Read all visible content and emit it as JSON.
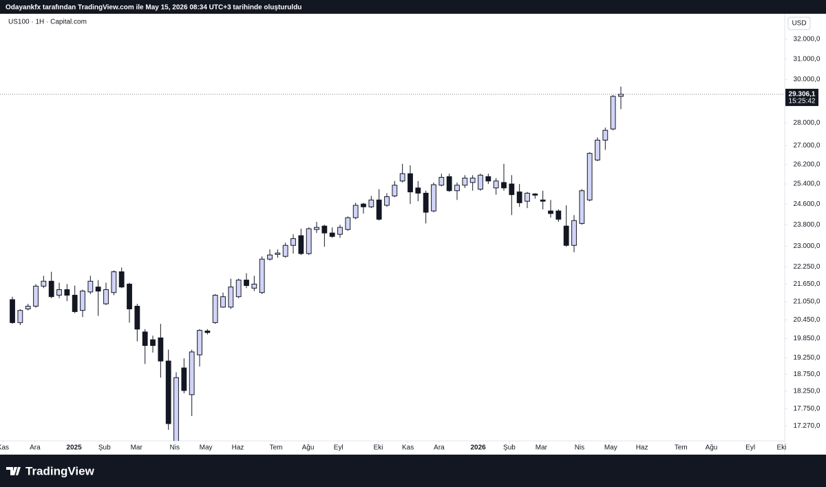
{
  "header": {
    "caption": "Odayankfx tarafından TradingView.com ile May 15, 2026 08:34 UTC+3 tarihinde oluşturuldu"
  },
  "footer": {
    "brand": "TradingView"
  },
  "chart_data": {
    "type": "candlestick",
    "title": "US100 · 1H · Capital.com",
    "currency": "USD",
    "log_scale": true,
    "grid": false,
    "up_color": "#d1d4f7",
    "down_color": "#131722",
    "categories": [
      null,
      null,
      null,
      null,
      null,
      null,
      null,
      null,
      null,
      null,
      null,
      null,
      null,
      null,
      null,
      null,
      null,
      null,
      null,
      null,
      null,
      null,
      null,
      null,
      null,
      null,
      null,
      null,
      null,
      null,
      null,
      null,
      null,
      null,
      null,
      null,
      null,
      null,
      null,
      null,
      null,
      null,
      null,
      null,
      null,
      null,
      null,
      null,
      null,
      null,
      null,
      null,
      null,
      null,
      null,
      null,
      null,
      null,
      null,
      null,
      null,
      null,
      null,
      null,
      null,
      null,
      null,
      null,
      null,
      null,
      null,
      null,
      null,
      null,
      null,
      null,
      null,
      null,
      null
    ],
    "open": [
      21120,
      20360,
      20810,
      20900,
      21580,
      21750,
      21270,
      21460,
      21270,
      20760,
      21380,
      21550,
      20980,
      21360,
      22080,
      21650,
      20900,
      20060,
      19810,
      19870,
      19150,
      16850,
      18940,
      18150,
      19340,
      20090,
      20360,
      20870,
      20870,
      21220,
      21790,
      21510,
      21360,
      22530,
      22700,
      22630,
      23030,
      23390,
      22730,
      23620,
      23750,
      23490,
      23440,
      23620,
      24070,
      24600,
      24490,
      24760,
      24550,
      24920,
      25520,
      25820,
      25240,
      25030,
      24330,
      25350,
      25700,
      25130,
      25350,
      25460,
      25190,
      25700,
      25240,
      25460,
      25400,
      25080,
      24710,
      25000,
      24760,
      24330,
      24330,
      23750,
      23030,
      23850,
      24760,
      26390,
      27240,
      27730,
      29210
    ],
    "high": [
      21220,
      20800,
      20980,
      21650,
      21940,
      22080,
      21700,
      21650,
      21600,
      21460,
      21940,
      21790,
      21700,
      22130,
      22230,
      21700,
      20980,
      20150,
      19940,
      20320,
      19500,
      18810,
      19230,
      19500,
      20150,
      20150,
      21310,
      21360,
      21840,
      21840,
      22030,
      21940,
      22630,
      22880,
      22880,
      23130,
      23440,
      23650,
      23700,
      23910,
      23800,
      23700,
      23800,
      24120,
      24650,
      24650,
      24920,
      25190,
      25030,
      25520,
      26230,
      26170,
      25520,
      25130,
      25460,
      25820,
      25820,
      25460,
      25760,
      25760,
      25820,
      25820,
      25640,
      26230,
      25760,
      25400,
      25080,
      25030,
      25130,
      24760,
      24390,
      24550,
      24170,
      25190,
      26720,
      27360,
      27790,
      29270,
      29670
    ],
    "low": [
      20320,
      20280,
      20760,
      20850,
      21510,
      21170,
      21170,
      21070,
      20670,
      20540,
      21310,
      20580,
      20940,
      21270,
      21510,
      20360,
      19760,
      19060,
      19410,
      18650,
      17160,
      16760,
      18190,
      17540,
      18980,
      19980,
      20320,
      20850,
      20810,
      21170,
      21510,
      21410,
      21310,
      22480,
      22580,
      22580,
      22730,
      22680,
      22680,
      23490,
      22980,
      23310,
      23310,
      23570,
      24010,
      24230,
      24440,
      23960,
      24490,
      24870,
      25460,
      24600,
      24710,
      23850,
      24280,
      25300,
      25080,
      24760,
      25240,
      25130,
      25130,
      25400,
      24970,
      25130,
      24170,
      24490,
      24440,
      24810,
      24390,
      24070,
      23910,
      22980,
      22780,
      23800,
      24710,
      26340,
      26820,
      27670,
      28620
    ],
    "close": [
      20360,
      20760,
      20900,
      21580,
      21750,
      21220,
      21460,
      21270,
      20720,
      21410,
      21750,
      21410,
      21460,
      22080,
      21550,
      20810,
      20150,
      19630,
      19630,
      19150,
      17330,
      18650,
      18270,
      19430,
      20110,
      20040,
      21270,
      21220,
      21550,
      21790,
      21600,
      21650,
      22530,
      22680,
      22750,
      23030,
      23280,
      22730,
      23650,
      23700,
      23490,
      23360,
      23700,
      24070,
      24550,
      24490,
      24760,
      24010,
      24890,
      25350,
      25820,
      25080,
      25030,
      24280,
      25370,
      25670,
      25130,
      25350,
      25640,
      25640,
      25760,
      25520,
      25520,
      25240,
      24970,
      24650,
      25030,
      24950,
      24710,
      24230,
      24010,
      23030,
      23960,
      25130,
      26670,
      27240,
      27670,
      29210,
      29306.1
    ],
    "last_price": {
      "value": 29306.1,
      "label": "29.306,1"
    },
    "countdown": "15:25:42",
    "xlim": [
      -1.59,
      99
    ],
    "xticks": [
      {
        "value": -1.2,
        "label": "Kas"
      },
      {
        "value": 2.9,
        "label": "Ara"
      },
      {
        "value": 7.9,
        "label": "2025"
      },
      {
        "value": 11.8,
        "label": "Şub"
      },
      {
        "value": 15.9,
        "label": "Mar"
      },
      {
        "value": 20.8,
        "label": "Nis"
      },
      {
        "value": 24.8,
        "label": "May"
      },
      {
        "value": 28.9,
        "label": "Haz"
      },
      {
        "value": 33.8,
        "label": "Tem"
      },
      {
        "value": 37.9,
        "label": "Ağu"
      },
      {
        "value": 41.8,
        "label": "Eyl"
      },
      {
        "value": 46.9,
        "label": "Eki"
      },
      {
        "value": 50.7,
        "label": "Kas"
      },
      {
        "value": 54.7,
        "label": "Ara"
      },
      {
        "value": 59.7,
        "label": "2026"
      },
      {
        "value": 63.7,
        "label": "Şub"
      },
      {
        "value": 67.8,
        "label": "Mar"
      },
      {
        "value": 72.7,
        "label": "Nis"
      },
      {
        "value": 76.7,
        "label": "May"
      },
      {
        "value": 80.7,
        "label": "Haz"
      },
      {
        "value": 85.7,
        "label": "Tem"
      },
      {
        "value": 89.6,
        "label": "Ağu"
      },
      {
        "value": 94.6,
        "label": "Eyl"
      },
      {
        "value": 98.6,
        "label": "Eki"
      }
    ],
    "ylim": [
      16530,
      33250
    ],
    "yticks": [
      {
        "value": 32000,
        "label": "32.000,0"
      },
      {
        "value": 31000,
        "label": "31.000,0"
      },
      {
        "value": 30000,
        "label": "30.000,0"
      },
      {
        "value": 28000,
        "label": "28.000,0"
      },
      {
        "value": 27000,
        "label": "27.000,0"
      },
      {
        "value": 26200,
        "label": "26.200,0"
      },
      {
        "value": 25400,
        "label": "25.400,0"
      },
      {
        "value": 24600,
        "label": "24.600,0"
      },
      {
        "value": 23800,
        "label": "23.800,0"
      },
      {
        "value": 23000,
        "label": "23.000,0"
      },
      {
        "value": 22250,
        "label": "22.250,0"
      },
      {
        "value": 21650,
        "label": "21.650,0"
      },
      {
        "value": 21050,
        "label": "21.050,0"
      },
      {
        "value": 20450,
        "label": "20.450,0"
      },
      {
        "value": 19850,
        "label": "19.850,0"
      },
      {
        "value": 19250,
        "label": "19.250,0"
      },
      {
        "value": 18750,
        "label": "18.750,0"
      },
      {
        "value": 18250,
        "label": "18.250,0"
      },
      {
        "value": 17750,
        "label": "17.750,0"
      },
      {
        "value": 17270,
        "label": "17.270,0"
      }
    ]
  }
}
